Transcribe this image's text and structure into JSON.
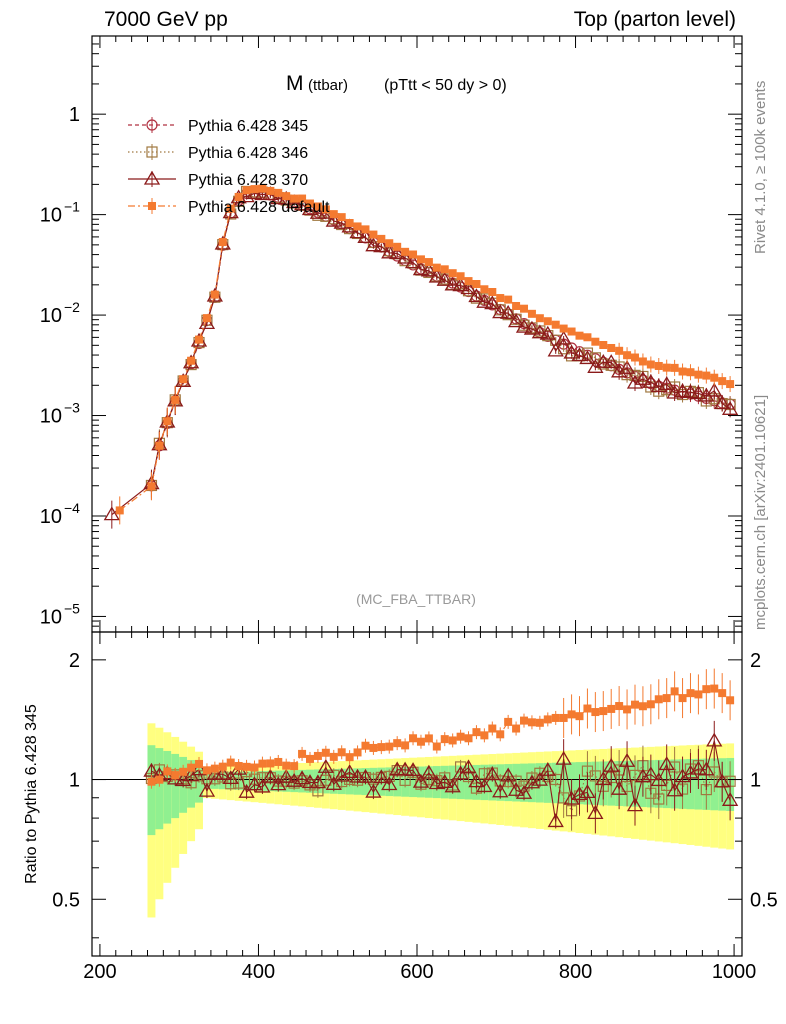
{
  "header": {
    "left": "7000 GeV pp",
    "right": "Top (parton level)"
  },
  "side": {
    "rivet": "Rivet 4.1.0, ≥ 100k events",
    "mcplots": "mcplots.cern.ch [arXiv:2401.10621]"
  },
  "chart_data": {
    "type": "line",
    "title": "M (ttbar) (pTtt < 50 dy > 0)",
    "title_main": "M",
    "title_sub": "(ttbar)",
    "title_rest": "(pTtt < 50 dy > 0)",
    "watermark": "(MC_FBA_TTBAR)",
    "xlim": [
      190,
      1010
    ],
    "x_ticks": [
      200,
      400,
      600,
      800,
      1000
    ],
    "x_tick_labels": [
      "200",
      "400",
      "600",
      "800",
      "1000"
    ],
    "main": {
      "yscale": "log",
      "ylim": [
        7e-06,
        6
      ],
      "y_ticks": [
        1e-05,
        0.0001,
        0.001,
        0.01,
        0.1,
        1
      ],
      "y_tick_base": [
        "10",
        "10",
        "10",
        "10",
        "10",
        "1"
      ],
      "y_tick_exp": [
        "−5",
        "−4",
        "−3",
        "−2",
        "−1",
        ""
      ]
    },
    "ratio": {
      "ylabel": "Ratio to Pythia 6.428 345",
      "ylim": [
        0.36,
        2.35
      ],
      "y_ticks": [
        0.5,
        1,
        2
      ],
      "y_tick_labels": [
        "0.5",
        "1",
        "2"
      ]
    },
    "series": [
      {
        "name": "Pythia 6.428 345",
        "color": "#b03040",
        "marker": "circle",
        "dash": "4,3"
      },
      {
        "name": "Pythia 6.428 346",
        "color": "#a07840",
        "marker": "square",
        "dash": "1.5,2.5"
      },
      {
        "name": "Pythia 6.428 370",
        "color": "#8b1a1a",
        "marker": "triangle",
        "dash": ""
      },
      {
        "name": "Pythia 6.428 default",
        "color": "#f47a30",
        "marker": "filled-square",
        "dash": "7,3,2,3"
      }
    ],
    "reference_points": [
      {
        "x": 215,
        "y": 0.0001
      },
      {
        "x": 265,
        "y": 0.0002
      },
      {
        "x": 275,
        "y": 0.0005
      },
      {
        "x": 300,
        "y": 0.0018
      },
      {
        "x": 320,
        "y": 0.004
      },
      {
        "x": 345,
        "y": 0.015
      },
      {
        "x": 360,
        "y": 0.09
      },
      {
        "x": 380,
        "y": 0.16
      },
      {
        "x": 400,
        "y": 0.17
      },
      {
        "x": 450,
        "y": 0.13
      },
      {
        "x": 500,
        "y": 0.085
      },
      {
        "x": 550,
        "y": 0.05
      },
      {
        "x": 600,
        "y": 0.03
      },
      {
        "x": 650,
        "y": 0.02
      },
      {
        "x": 700,
        "y": 0.012
      },
      {
        "x": 750,
        "y": 0.007
      },
      {
        "x": 800,
        "y": 0.0045
      },
      {
        "x": 850,
        "y": 0.003
      },
      {
        "x": 900,
        "y": 0.002
      },
      {
        "x": 950,
        "y": 0.0016
      },
      {
        "x": 990,
        "y": 0.0013
      }
    ],
    "ratio_reference": [
      {
        "x": 265,
        "y": 1.0
      },
      {
        "x": 300,
        "y": 1.05
      },
      {
        "x": 360,
        "y": 1.08
      },
      {
        "x": 450,
        "y": 1.12
      },
      {
        "x": 550,
        "y": 1.2
      },
      {
        "x": 650,
        "y": 1.27
      },
      {
        "x": 750,
        "y": 1.38
      },
      {
        "x": 850,
        "y": 1.5
      },
      {
        "x": 950,
        "y": 1.65
      }
    ]
  }
}
